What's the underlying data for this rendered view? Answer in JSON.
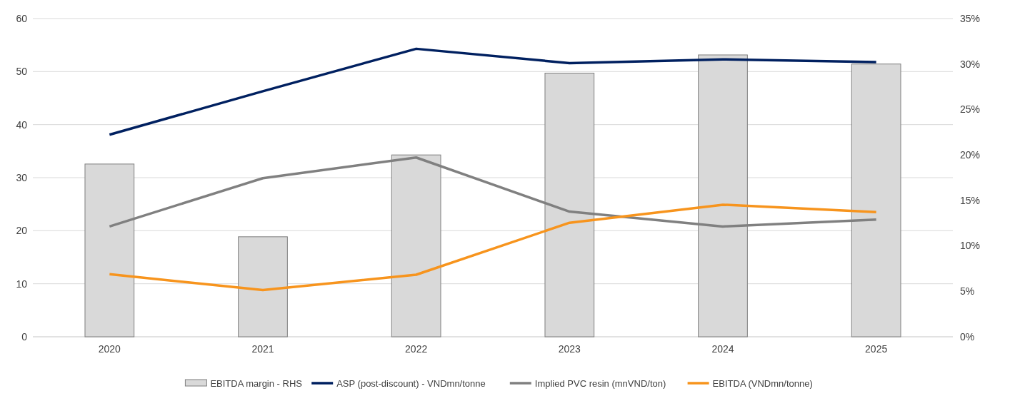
{
  "chart_data": {
    "type": "line",
    "categories": [
      "2020",
      "2021",
      "2022",
      "2023",
      "2024",
      "2025"
    ],
    "series": [
      {
        "name": "EBITDA margin - RHS",
        "type": "bar",
        "axis": "y2",
        "color": "#d9d9d9",
        "values": [
          19,
          11,
          20,
          29,
          31,
          30
        ]
      },
      {
        "name": "ASP (post-discount) - VNDmn/tonne",
        "color": "#002060",
        "values": [
          38.1,
          46.3,
          54.3,
          51.6,
          52.3,
          51.8
        ]
      },
      {
        "name": "Implied PVC resin (mnVND/ton)",
        "color": "#808080",
        "values": [
          20.8,
          29.9,
          33.8,
          23.6,
          20.8,
          22.1
        ]
      },
      {
        "name": "EBITDA (VNDmn/tonne)",
        "color": "#f7941d",
        "values": [
          11.8,
          8.8,
          11.7,
          21.5,
          24.9,
          23.5
        ]
      }
    ],
    "ylim": [
      0,
      60
    ],
    "yticks": [
      0,
      10,
      20,
      30,
      40,
      50,
      60
    ],
    "y2lim": [
      0,
      35
    ],
    "y2ticks": [
      {
        "value": 0,
        "label": "0%"
      },
      {
        "value": 5,
        "label": "5%"
      },
      {
        "value": 10,
        "label": "10%"
      },
      {
        "value": 15,
        "label": "15%"
      },
      {
        "value": 20,
        "label": "20%"
      },
      {
        "value": 25,
        "label": "25%"
      },
      {
        "value": 30,
        "label": "30%"
      },
      {
        "value": 35,
        "label": "35%"
      }
    ],
    "grid": "y",
    "legend": "bottom",
    "marker": "none",
    "line_style": "solid"
  }
}
